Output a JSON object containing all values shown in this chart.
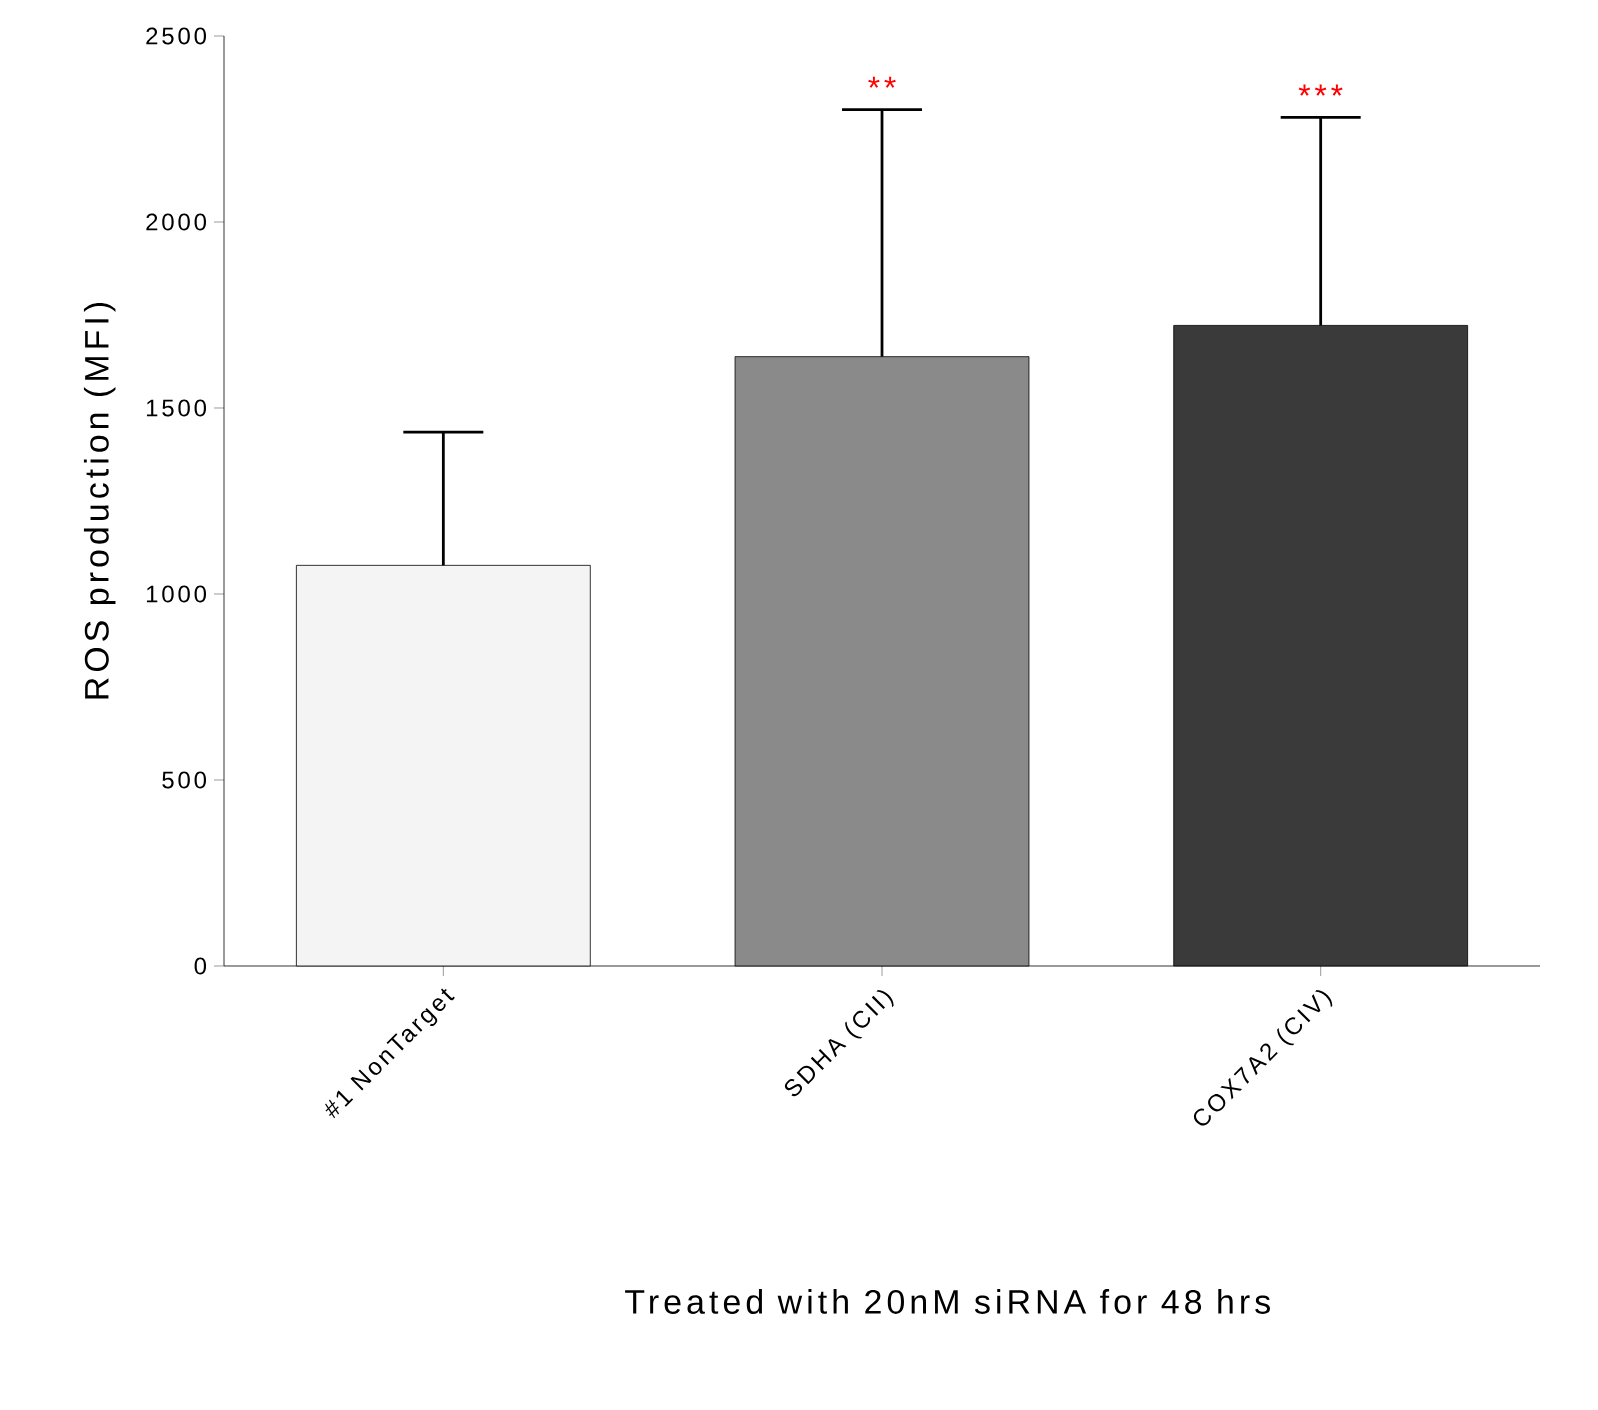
{
  "chart_data": {
    "type": "bar",
    "xlabel": "Treated with 20nM siRNA for 48 hrs",
    "ylabel": "ROS production (MFI)",
    "categories": [
      "#1 NonTarget",
      "SDHA (CII)",
      "COX7A2 (CIV)"
    ],
    "values": [
      1077,
      1638,
      1722
    ],
    "errors": [
      [
        1077,
        1435
      ],
      [
        1638,
        2302
      ],
      [
        1722,
        2281
      ]
    ],
    "colors": [
      "#f4f4f4",
      "#8a8a8a",
      "#3a3a3a"
    ],
    "ylim": [
      0,
      2500
    ],
    "yticks": [
      0,
      500,
      1000,
      1500,
      2000,
      2500
    ],
    "grid": false,
    "annotations": [
      "**",
      "***"
    ]
  }
}
